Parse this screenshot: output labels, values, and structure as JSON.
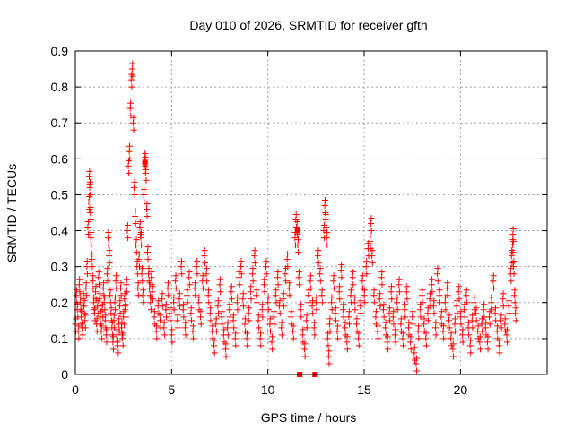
{
  "chart_data": {
    "type": "scatter",
    "title": "Day 010 of 2026, SRMTID for receiver gfth",
    "xlabel": "GPS time / hours",
    "ylabel": "SRMTID / TECUs",
    "xlim": [
      0,
      24.5
    ],
    "ylim": [
      0,
      0.9
    ],
    "x_ticks": [
      0,
      5,
      10,
      15,
      20
    ],
    "y_ticks": [
      0,
      0.1,
      0.2,
      0.3,
      0.4,
      0.5,
      0.6,
      0.7,
      0.8,
      0.9
    ],
    "grid": true,
    "marker": "plus",
    "color": "#ff0000",
    "series": [
      {
        "name": "SRMTID",
        "points": [
          [
            0.0,
            0.14
          ],
          [
            0.05,
            0.22
          ],
          [
            0.1,
            0.18
          ],
          [
            0.15,
            0.12
          ],
          [
            0.2,
            0.25
          ],
          [
            0.25,
            0.2
          ],
          [
            0.3,
            0.16
          ],
          [
            0.35,
            0.13
          ],
          [
            0.4,
            0.21
          ],
          [
            0.45,
            0.19
          ],
          [
            0.5,
            0.15
          ],
          [
            0.55,
            0.24
          ],
          [
            0.6,
            0.3
          ],
          [
            0.65,
            0.41
          ],
          [
            0.7,
            0.48
          ],
          [
            0.72,
            0.55
          ],
          [
            0.75,
            0.52
          ],
          [
            0.78,
            0.45
          ],
          [
            0.8,
            0.38
          ],
          [
            0.85,
            0.32
          ],
          [
            0.9,
            0.26
          ],
          [
            0.95,
            0.2
          ],
          [
            1.0,
            0.17
          ],
          [
            1.05,
            0.23
          ],
          [
            1.1,
            0.14
          ],
          [
            1.15,
            0.19
          ],
          [
            1.2,
            0.27
          ],
          [
            1.25,
            0.21
          ],
          [
            1.3,
            0.16
          ],
          [
            1.35,
            0.12
          ],
          [
            1.4,
            0.18
          ],
          [
            1.45,
            0.24
          ],
          [
            1.5,
            0.2
          ],
          [
            1.55,
            0.15
          ],
          [
            1.6,
            0.11
          ],
          [
            1.65,
            0.28
          ],
          [
            1.7,
            0.38
          ],
          [
            1.75,
            0.33
          ],
          [
            1.8,
            0.22
          ],
          [
            1.85,
            0.17
          ],
          [
            1.9,
            0.13
          ],
          [
            1.95,
            0.09
          ],
          [
            2.0,
            0.15
          ],
          [
            2.05,
            0.2
          ],
          [
            2.1,
            0.26
          ],
          [
            2.15,
            0.11
          ],
          [
            2.2,
            0.08
          ],
          [
            2.25,
            0.14
          ],
          [
            2.3,
            0.19
          ],
          [
            2.35,
            0.24
          ],
          [
            2.4,
            0.13
          ],
          [
            2.45,
            0.1
          ],
          [
            2.5,
            0.16
          ],
          [
            2.55,
            0.21
          ],
          [
            2.6,
            0.18
          ],
          [
            2.65,
            0.25
          ],
          [
            2.7,
            0.4
          ],
          [
            2.75,
            0.58
          ],
          [
            2.8,
            0.62
          ],
          [
            2.85,
            0.74
          ],
          [
            2.9,
            0.82
          ],
          [
            2.95,
            0.85
          ],
          [
            3.0,
            0.7
          ],
          [
            3.05,
            0.52
          ],
          [
            3.1,
            0.44
          ],
          [
            3.15,
            0.36
          ],
          [
            3.2,
            0.3
          ],
          [
            3.25,
            0.24
          ],
          [
            3.3,
            0.32
          ],
          [
            3.35,
            0.41
          ],
          [
            3.4,
            0.38
          ],
          [
            3.45,
            0.28
          ],
          [
            3.5,
            0.22
          ],
          [
            3.55,
            0.5
          ],
          [
            3.6,
            0.6
          ],
          [
            3.62,
            0.59
          ],
          [
            3.65,
            0.56
          ],
          [
            3.7,
            0.46
          ],
          [
            3.75,
            0.34
          ],
          [
            3.8,
            0.28
          ],
          [
            3.85,
            0.24
          ],
          [
            3.9,
            0.2
          ],
          [
            3.95,
            0.27
          ],
          [
            4.0,
            0.23
          ],
          [
            4.1,
            0.16
          ],
          [
            4.2,
            0.12
          ],
          [
            4.3,
            0.19
          ],
          [
            4.4,
            0.15
          ],
          [
            4.5,
            0.21
          ],
          [
            4.6,
            0.13
          ],
          [
            4.7,
            0.18
          ],
          [
            4.8,
            0.24
          ],
          [
            4.9,
            0.17
          ],
          [
            5.0,
            0.11
          ],
          [
            5.1,
            0.2
          ],
          [
            5.2,
            0.26
          ],
          [
            5.3,
            0.15
          ],
          [
            5.4,
            0.21
          ],
          [
            5.5,
            0.3
          ],
          [
            5.6,
            0.18
          ],
          [
            5.7,
            0.13
          ],
          [
            5.8,
            0.22
          ],
          [
            5.9,
            0.27
          ],
          [
            6.0,
            0.17
          ],
          [
            6.1,
            0.12
          ],
          [
            6.2,
            0.24
          ],
          [
            6.3,
            0.3
          ],
          [
            6.4,
            0.2
          ],
          [
            6.5,
            0.16
          ],
          [
            6.6,
            0.26
          ],
          [
            6.7,
            0.33
          ],
          [
            6.8,
            0.28
          ],
          [
            6.9,
            0.22
          ],
          [
            7.0,
            0.17
          ],
          [
            7.1,
            0.12
          ],
          [
            7.2,
            0.08
          ],
          [
            7.3,
            0.14
          ],
          [
            7.4,
            0.19
          ],
          [
            7.5,
            0.25
          ],
          [
            7.6,
            0.16
          ],
          [
            7.7,
            0.11
          ],
          [
            7.8,
            0.07
          ],
          [
            7.9,
            0.13
          ],
          [
            8.0,
            0.18
          ],
          [
            8.1,
            0.23
          ],
          [
            8.2,
            0.15
          ],
          [
            8.3,
            0.1
          ],
          [
            8.4,
            0.2
          ],
          [
            8.5,
            0.27
          ],
          [
            8.6,
            0.3
          ],
          [
            8.7,
            0.21
          ],
          [
            8.8,
            0.14
          ],
          [
            8.9,
            0.1
          ],
          [
            9.0,
            0.17
          ],
          [
            9.1,
            0.23
          ],
          [
            9.2,
            0.28
          ],
          [
            9.3,
            0.33
          ],
          [
            9.4,
            0.22
          ],
          [
            9.5,
            0.15
          ],
          [
            9.6,
            0.1
          ],
          [
            9.7,
            0.18
          ],
          [
            9.8,
            0.25
          ],
          [
            9.9,
            0.3
          ],
          [
            10.0,
            0.2
          ],
          [
            10.1,
            0.14
          ],
          [
            10.2,
            0.09
          ],
          [
            10.3,
            0.16
          ],
          [
            10.4,
            0.22
          ],
          [
            10.5,
            0.27
          ],
          [
            10.6,
            0.19
          ],
          [
            10.7,
            0.13
          ],
          [
            10.8,
            0.21
          ],
          [
            10.9,
            0.28
          ],
          [
            11.0,
            0.32
          ],
          [
            11.1,
            0.24
          ],
          [
            11.2,
            0.16
          ],
          [
            11.3,
            0.12
          ],
          [
            11.4,
            0.38
          ],
          [
            11.45,
            0.43
          ],
          [
            11.5,
            0.41
          ],
          [
            11.55,
            0.36
          ],
          [
            11.6,
            0.27
          ],
          [
            11.7,
            0.18
          ],
          [
            11.8,
            0.11
          ],
          [
            11.9,
            0.07
          ],
          [
            12.0,
            0.15
          ],
          [
            12.1,
            0.22
          ],
          [
            12.2,
            0.26
          ],
          [
            12.3,
            0.19
          ],
          [
            12.4,
            0.13
          ],
          [
            12.5,
            0.2
          ],
          [
            12.6,
            0.33
          ],
          [
            12.7,
            0.28
          ],
          [
            12.8,
            0.22
          ],
          [
            12.9,
            0.4
          ],
          [
            12.95,
            0.47
          ],
          [
            13.0,
            0.43
          ],
          [
            13.05,
            0.38
          ],
          [
            13.1,
            0.1
          ],
          [
            13.15,
            0.05
          ],
          [
            13.2,
            0.14
          ],
          [
            13.3,
            0.2
          ],
          [
            13.4,
            0.26
          ],
          [
            13.5,
            0.17
          ],
          [
            13.6,
            0.12
          ],
          [
            13.7,
            0.23
          ],
          [
            13.8,
            0.29
          ],
          [
            13.9,
            0.18
          ],
          [
            14.0,
            0.13
          ],
          [
            14.1,
            0.09
          ],
          [
            14.2,
            0.16
          ],
          [
            14.3,
            0.22
          ],
          [
            14.4,
            0.27
          ],
          [
            14.5,
            0.2
          ],
          [
            14.6,
            0.14
          ],
          [
            14.7,
            0.1
          ],
          [
            14.8,
            0.19
          ],
          [
            14.9,
            0.26
          ],
          [
            15.0,
            0.22
          ],
          [
            15.1,
            0.3
          ],
          [
            15.2,
            0.35
          ],
          [
            15.3,
            0.37
          ],
          [
            15.35,
            0.42
          ],
          [
            15.4,
            0.33
          ],
          [
            15.5,
            0.22
          ],
          [
            15.6,
            0.16
          ],
          [
            15.7,
            0.12
          ],
          [
            15.8,
            0.21
          ],
          [
            15.9,
            0.27
          ],
          [
            16.0,
            0.18
          ],
          [
            16.1,
            0.13
          ],
          [
            16.2,
            0.09
          ],
          [
            16.3,
            0.17
          ],
          [
            16.4,
            0.23
          ],
          [
            16.5,
            0.16
          ],
          [
            16.6,
            0.11
          ],
          [
            16.7,
            0.2
          ],
          [
            16.8,
            0.25
          ],
          [
            16.9,
            0.14
          ],
          [
            17.0,
            0.1
          ],
          [
            17.1,
            0.18
          ],
          [
            17.2,
            0.23
          ],
          [
            17.3,
            0.13
          ],
          [
            17.4,
            0.09
          ],
          [
            17.5,
            0.16
          ],
          [
            17.6,
            0.06
          ],
          [
            17.7,
            0.03
          ],
          [
            17.8,
            0.12
          ],
          [
            17.9,
            0.18
          ],
          [
            18.0,
            0.22
          ],
          [
            18.1,
            0.14
          ],
          [
            18.2,
            0.1
          ],
          [
            18.3,
            0.17
          ],
          [
            18.4,
            0.21
          ],
          [
            18.5,
            0.25
          ],
          [
            18.6,
            0.19
          ],
          [
            18.7,
            0.13
          ],
          [
            18.8,
            0.28
          ],
          [
            18.9,
            0.22
          ],
          [
            19.0,
            0.16
          ],
          [
            19.1,
            0.12
          ],
          [
            19.2,
            0.2
          ],
          [
            19.3,
            0.24
          ],
          [
            19.4,
            0.15
          ],
          [
            19.5,
            0.1
          ],
          [
            19.6,
            0.07
          ],
          [
            19.7,
            0.14
          ],
          [
            19.8,
            0.19
          ],
          [
            19.9,
            0.23
          ],
          [
            20.0,
            0.16
          ],
          [
            20.1,
            0.11
          ],
          [
            20.2,
            0.18
          ],
          [
            20.3,
            0.22
          ],
          [
            20.4,
            0.13
          ],
          [
            20.5,
            0.08
          ],
          [
            20.6,
            0.15
          ],
          [
            20.7,
            0.2
          ],
          [
            20.8,
            0.17
          ],
          [
            20.9,
            0.12
          ],
          [
            21.0,
            0.09
          ],
          [
            21.1,
            0.14
          ],
          [
            21.2,
            0.18
          ],
          [
            21.3,
            0.13
          ],
          [
            21.4,
            0.09
          ],
          [
            21.5,
            0.16
          ],
          [
            21.6,
            0.2
          ],
          [
            21.7,
            0.26
          ],
          [
            21.8,
            0.17
          ],
          [
            21.9,
            0.12
          ],
          [
            22.0,
            0.08
          ],
          [
            22.1,
            0.15
          ],
          [
            22.2,
            0.21
          ],
          [
            22.3,
            0.14
          ],
          [
            22.4,
            0.11
          ],
          [
            22.5,
            0.19
          ],
          [
            22.6,
            0.28
          ],
          [
            22.65,
            0.33
          ],
          [
            22.7,
            0.36
          ],
          [
            22.72,
            0.39
          ],
          [
            22.75,
            0.3
          ],
          [
            22.8,
            0.22
          ],
          [
            22.85,
            0.17
          ]
        ]
      }
    ],
    "highlight_points": [
      [
        3.62,
        0.59
      ],
      [
        11.55,
        0.4
      ],
      [
        11.65,
        0.0
      ],
      [
        12.45,
        0.0
      ]
    ]
  }
}
